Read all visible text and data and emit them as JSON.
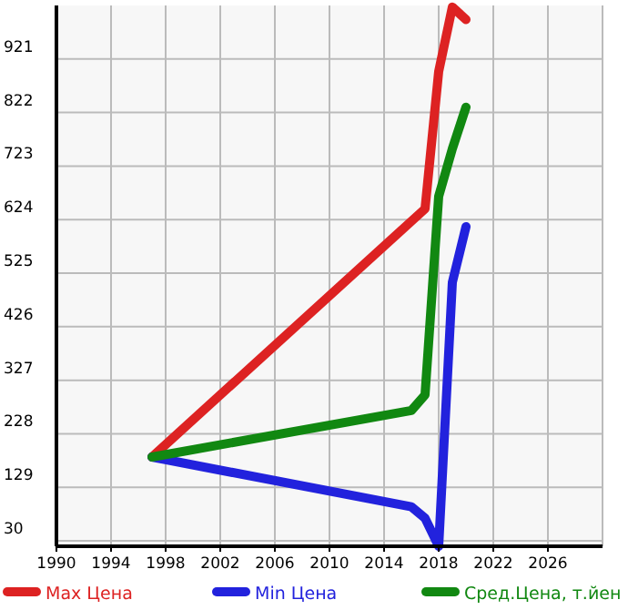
{
  "chart_data": {
    "type": "line",
    "x": [
      1997,
      2016,
      2017,
      2018,
      2019,
      2020
    ],
    "series": [
      {
        "name": "Max Цена",
        "color": "#dd2222",
        "values": [
          185,
          null,
          644,
          898,
          1017,
          994
        ]
      },
      {
        "name": "Min Цена",
        "color": "#2222dd",
        "values": [
          185,
          93,
          72,
          20,
          508,
          611
        ]
      },
      {
        "name": "Сред.Цена, т.йен",
        "color": "#118811",
        "values": [
          185,
          271,
          300,
          667,
          755,
          832
        ]
      }
    ],
    "xlim": [
      1990,
      2030
    ],
    "xticks": [
      1990,
      1994,
      1998,
      2002,
      2006,
      2010,
      2014,
      2018,
      2022,
      2026
    ],
    "ylim": [
      20,
      1020
    ],
    "yticks": [
      30,
      129,
      228,
      327,
      426,
      525,
      624,
      723,
      822,
      921
    ],
    "grid": true,
    "legend": "bottom",
    "marker": "none",
    "line_style": "solid"
  }
}
